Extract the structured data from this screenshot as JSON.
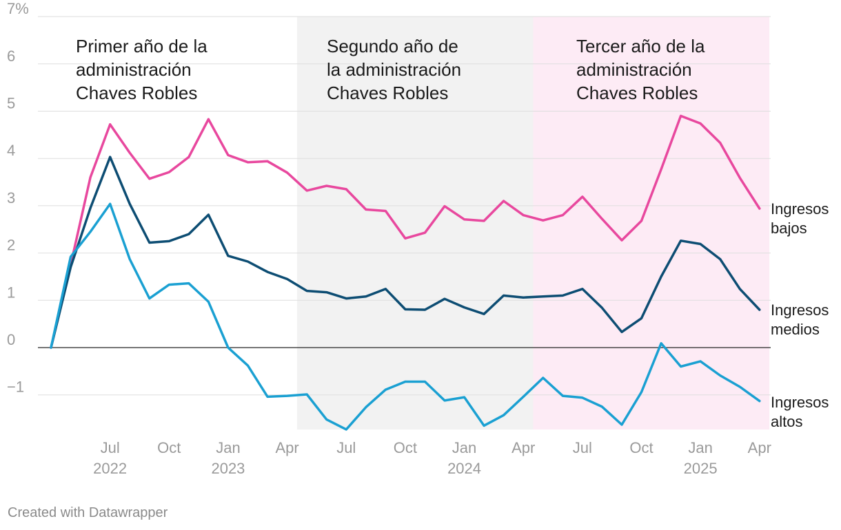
{
  "chart_data": {
    "type": "line",
    "title": "",
    "xlabel": "",
    "ylabel": "",
    "ylim": [
      -1.75,
      7
    ],
    "y_ticks": [
      {
        "value": 7,
        "label": "7%"
      },
      {
        "value": 6,
        "label": "6"
      },
      {
        "value": 5,
        "label": "5"
      },
      {
        "value": 4,
        "label": "4"
      },
      {
        "value": 3,
        "label": "3"
      },
      {
        "value": 2,
        "label": "2"
      },
      {
        "value": 1,
        "label": "1"
      },
      {
        "value": 0,
        "label": "0"
      },
      {
        "value": -1,
        "label": "−1"
      }
    ],
    "x_start": "2022-04",
    "x_ticks": [
      {
        "index": 3,
        "label": "Jul",
        "year": "2022"
      },
      {
        "index": 6,
        "label": "Oct",
        "year": ""
      },
      {
        "index": 9,
        "label": "Jan",
        "year": "2023"
      },
      {
        "index": 12,
        "label": "Apr",
        "year": ""
      },
      {
        "index": 15,
        "label": "Jul",
        "year": ""
      },
      {
        "index": 18,
        "label": "Oct",
        "year": ""
      },
      {
        "index": 21,
        "label": "Jan",
        "year": "2024"
      },
      {
        "index": 24,
        "label": "Apr",
        "year": ""
      },
      {
        "index": 27,
        "label": "Jul",
        "year": ""
      },
      {
        "index": 30,
        "label": "Oct",
        "year": ""
      },
      {
        "index": 33,
        "label": "Jan",
        "year": "2025"
      },
      {
        "index": 36,
        "label": "Apr",
        "year": ""
      }
    ],
    "shaded_periods": [
      {
        "start_index": 0,
        "end_index": 12.5,
        "color": "#ffffff",
        "label_lines": [
          "Primer año de la",
          "administración",
          "Chaves Robles"
        ]
      },
      {
        "start_index": 12.5,
        "end_index": 24.5,
        "color": "#f2f2f2",
        "label_lines": [
          "Segundo año de",
          "la administración",
          "Chaves Robles"
        ]
      },
      {
        "start_index": 24.5,
        "end_index": 36.5,
        "color": "#fdebf5",
        "label_lines": [
          "Tercer año de la",
          "administración",
          "Chaves Robles"
        ]
      }
    ],
    "series": [
      {
        "name": "Ingresos bajos",
        "label_lines": [
          "Ingresos",
          "bajos"
        ],
        "color": "#e8489e",
        "values": [
          0,
          1.75,
          3.6,
          4.72,
          4.12,
          3.57,
          3.71,
          4.03,
          4.83,
          4.07,
          3.92,
          3.94,
          3.7,
          3.32,
          3.42,
          3.35,
          2.92,
          2.89,
          2.31,
          2.43,
          2.99,
          2.71,
          2.68,
          3.1,
          2.8,
          2.69,
          2.8,
          3.19,
          2.72,
          2.27,
          2.68,
          3.77,
          4.9,
          4.74,
          4.33,
          3.59,
          2.94
        ]
      },
      {
        "name": "Ingresos medios",
        "label_lines": [
          "Ingresos",
          "medios"
        ],
        "color": "#0d4d73",
        "values": [
          0,
          1.7,
          2.95,
          4.03,
          3.04,
          2.22,
          2.25,
          2.4,
          2.81,
          1.94,
          1.82,
          1.6,
          1.45,
          1.2,
          1.17,
          1.04,
          1.08,
          1.24,
          0.81,
          0.8,
          1.03,
          0.85,
          0.71,
          1.1,
          1.06,
          1.08,
          1.1,
          1.24,
          0.84,
          0.33,
          0.62,
          1.5,
          2.26,
          2.19,
          1.87,
          1.24,
          0.8
        ]
      },
      {
        "name": "Ingresos altos",
        "label_lines": [
          "Ingresos",
          "altos"
        ],
        "color": "#1aa0d2",
        "values": [
          0,
          1.92,
          2.45,
          3.04,
          1.87,
          1.04,
          1.33,
          1.36,
          0.97,
          0.0,
          -0.38,
          -1.04,
          -1.02,
          -0.99,
          -1.52,
          -1.73,
          -1.26,
          -0.89,
          -0.72,
          -0.72,
          -1.12,
          -1.05,
          -1.65,
          -1.43,
          -1.04,
          -0.64,
          -1.02,
          -1.06,
          -1.25,
          -1.63,
          -0.94,
          0.09,
          -0.4,
          -0.29,
          -0.59,
          -0.83,
          -1.13
        ]
      }
    ]
  },
  "credit": "Created with Datawrapper"
}
